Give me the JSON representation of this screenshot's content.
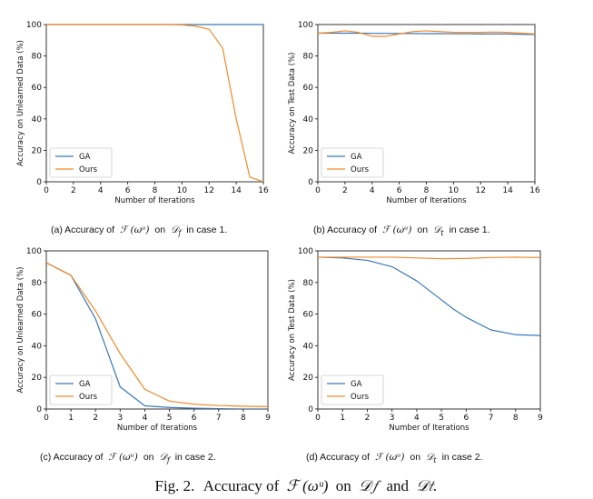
{
  "colors": {
    "ga": "#3b78b8",
    "ours": "#f28a2a",
    "axis": "#222222"
  },
  "figure": {
    "caption_prefix": "Fig. 2.",
    "caption_body": "Accuracy of",
    "caption_math1": "ℱ (ωᵘ)",
    "caption_on": "on",
    "caption_math2": "𝒟𝑓",
    "caption_and": "and",
    "caption_math3": "𝒟𝑡."
  },
  "subcaptions": [
    {
      "label": "(a) Accuracy of",
      "math1": "ℱ (ωᵘ)",
      "on": "on",
      "math2": "𝒟",
      "sub": "f",
      "tail": "in case 1."
    },
    {
      "label": "(b) Accuracy of",
      "math1": "ℱ (ωᵘ)",
      "on": "on",
      "math2": "𝒟",
      "sub": "t",
      "tail": "in case 1."
    },
    {
      "label": "(c) Accuracy of",
      "math1": "ℱ (ωᵘ)",
      "on": "on",
      "math2": "𝒟",
      "sub": "f",
      "tail": "in case 2."
    },
    {
      "label": "(d) Accuracy of",
      "math1": "ℱ (ωᵘ)",
      "on": "on",
      "math2": "𝒟",
      "sub": "t",
      "tail": "in case 2."
    }
  ],
  "chart_data": [
    {
      "type": "line",
      "xlabel": "Number of Iterations",
      "ylabel": "Accuracy on Unlearned Data (%)",
      "xlim": [
        0,
        16
      ],
      "ylim": [
        0,
        100
      ],
      "xticks": [
        0,
        2,
        4,
        6,
        8,
        10,
        12,
        14,
        16
      ],
      "xtick_labels": [
        "0",
        "2",
        "4",
        "6",
        "8",
        "10",
        "12",
        "14",
        "16"
      ],
      "yticks": [
        0,
        20,
        40,
        60,
        80,
        100
      ],
      "legend_position": "lower-left",
      "grid": false,
      "series": [
        {
          "name": "GA",
          "x": [
            0,
            1,
            2,
            3,
            4,
            5,
            6,
            7,
            8,
            9,
            10,
            11,
            12,
            13,
            14,
            15,
            16
          ],
          "y": [
            100,
            100,
            100,
            100,
            100,
            100,
            100,
            100,
            100,
            100,
            100,
            100,
            100,
            100,
            100,
            100,
            100
          ]
        },
        {
          "name": "Ours",
          "x": [
            0,
            1,
            2,
            3,
            4,
            5,
            6,
            7,
            8,
            9,
            10,
            11,
            12,
            13,
            14,
            15,
            16
          ],
          "y": [
            100,
            100,
            100,
            100,
            100,
            100,
            100,
            100,
            100,
            100,
            99.8,
            99,
            97,
            85,
            40,
            3,
            0
          ]
        }
      ]
    },
    {
      "type": "line",
      "xlabel": "Number of Iterations",
      "ylabel": "Accuracy on Test Data (%)",
      "xlim": [
        0,
        16
      ],
      "ylim": [
        0,
        100
      ],
      "xticks": [
        0,
        2,
        4,
        6,
        8,
        10,
        12,
        14,
        16
      ],
      "xtick_labels": [
        "0",
        "2",
        "4",
        "6",
        "8",
        "10",
        "12",
        "14",
        "16"
      ],
      "yticks": [
        0,
        20,
        40,
        60,
        80,
        100
      ],
      "legend_position": "lower-left",
      "grid": false,
      "series": [
        {
          "name": "GA",
          "x": [
            0,
            1,
            2,
            3,
            4,
            5,
            6,
            7,
            8,
            9,
            10,
            11,
            12,
            13,
            14,
            15,
            16
          ],
          "y": [
            94.5,
            94.5,
            94.5,
            94.5,
            94.4,
            94.4,
            94.3,
            94.3,
            94.2,
            94.2,
            94.1,
            94.1,
            94,
            94,
            94,
            93.8,
            93.6
          ]
        },
        {
          "name": "Ours",
          "x": [
            0,
            1,
            2,
            3,
            4,
            5,
            6,
            7,
            8,
            9,
            10,
            11,
            12,
            13,
            14,
            15,
            16
          ],
          "y": [
            94.5,
            95,
            96,
            95,
            92.5,
            92.5,
            94,
            95.5,
            96,
            95.5,
            95,
            95,
            95,
            95.2,
            95,
            94.5,
            94
          ]
        }
      ]
    },
    {
      "type": "line",
      "xlabel": "Number of Iterations",
      "ylabel": "Accuracy on Unlearned Data (%)",
      "xlim": [
        0,
        9
      ],
      "ylim": [
        0,
        100
      ],
      "xticks": [
        0,
        1,
        2,
        3,
        4,
        5,
        6,
        7,
        8,
        9
      ],
      "xtick_labels": [
        "0",
        "1",
        "2",
        "3",
        "4",
        "5",
        "6",
        "7",
        "8",
        "9"
      ],
      "yticks": [
        0,
        20,
        40,
        60,
        80,
        100
      ],
      "legend_position": "lower-left",
      "grid": false,
      "series": [
        {
          "name": "GA",
          "x": [
            0,
            1,
            2,
            3,
            4,
            5,
            6,
            7,
            8,
            9
          ],
          "y": [
            92.5,
            84.5,
            57,
            14,
            2,
            1,
            0.5,
            0.2,
            0,
            0
          ]
        },
        {
          "name": "Ours",
          "x": [
            0,
            1,
            2,
            3,
            4,
            5,
            6,
            7,
            8,
            9
          ],
          "y": [
            92.5,
            84.5,
            62,
            35,
            12.5,
            5,
            3,
            2.2,
            1.8,
            1.5
          ]
        }
      ]
    },
    {
      "type": "line",
      "xlabel": "Number of Iterations",
      "ylabel": "Accuracy on Test Data (%)",
      "xlim": [
        0,
        9
      ],
      "ylim": [
        0,
        100
      ],
      "xticks": [
        0,
        1,
        2,
        3,
        4,
        5,
        6,
        7,
        8,
        9
      ],
      "xtick_labels": [
        "0",
        "1",
        "2",
        "3",
        "4",
        "5",
        "6",
        "7",
        "8",
        "9"
      ],
      "yticks": [
        0,
        20,
        40,
        60,
        80,
        100
      ],
      "legend_position": "lower-left",
      "grid": false,
      "series": [
        {
          "name": "GA",
          "x": [
            0,
            1,
            2,
            3,
            4,
            5,
            5.5,
            6,
            6.5,
            7,
            8,
            9
          ],
          "y": [
            96,
            95.5,
            94,
            90,
            81,
            69,
            63,
            58,
            54,
            50,
            47,
            46.5
          ]
        },
        {
          "name": "Ours",
          "x": [
            0,
            1,
            2,
            3,
            4,
            5,
            6,
            7,
            8,
            9
          ],
          "y": [
            96,
            96,
            96,
            96,
            95.5,
            95,
            95.2,
            95.8,
            96,
            95.8
          ]
        }
      ]
    }
  ]
}
